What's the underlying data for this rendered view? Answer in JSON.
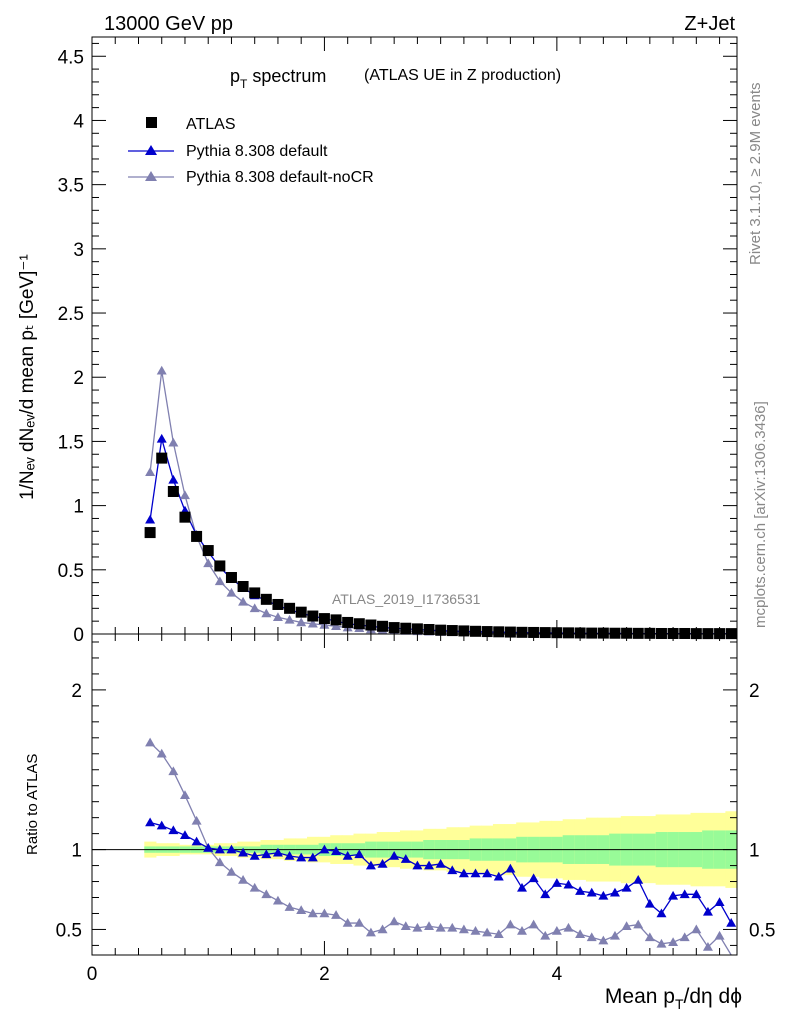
{
  "header": {
    "energy": "13000 GeV pp",
    "process": "Z+Jet",
    "side_rivet": "Rivet 3.1.10, ≥ 2.9M events",
    "side_mcplots": "mcplots.cern.ch [arXiv:1306.3436]",
    "analysis_id": "ATLAS_2019_I1736531"
  },
  "title": {
    "main_p": "p",
    "main_sub": "T",
    "main_rest": " spectrum",
    "extra": "(ATLAS UE in Z production)"
  },
  "axes": {
    "xlabel_a": "Mean p",
    "xlabel_sub": "T",
    "xlabel_b": "/dη dϕ",
    "ylabel_main": "1/Nₑᵥ dNₑᵥ/d mean pₜ [GeV]⁻¹",
    "ylabel_ratio": "Ratio to ATLAS"
  },
  "legend": {
    "items": [
      {
        "label": "ATLAS",
        "color": "#000000",
        "marker": "square"
      },
      {
        "label": "Pythia 8.308 default",
        "color": "#0000cc",
        "marker": "triangle"
      },
      {
        "label": "Pythia 8.308 default-noCR",
        "color": "#8080b0",
        "marker": "triangle"
      }
    ]
  },
  "colors": {
    "data": "#000000",
    "default": "#0000cc",
    "nocr": "#8080b0",
    "band_inner": "#98fb98",
    "band_outer": "#ffff99"
  },
  "chart_data": {
    "type": "line",
    "x": [
      0.5,
      0.6,
      0.7,
      0.8,
      0.9,
      1.0,
      1.1,
      1.2,
      1.3,
      1.4,
      1.5,
      1.6,
      1.7,
      1.8,
      1.9,
      2.0,
      2.1,
      2.2,
      2.3,
      2.4,
      2.5,
      2.6,
      2.7,
      2.8,
      2.9,
      3.0,
      3.1,
      3.2,
      3.3,
      3.4,
      3.5,
      3.6,
      3.7,
      3.8,
      3.9,
      4.0,
      4.1,
      4.2,
      4.3,
      4.4,
      4.5,
      4.6,
      4.7,
      4.8,
      4.9,
      5.0,
      5.1,
      5.2,
      5.3,
      5.4,
      5.5
    ],
    "xlim": [
      0,
      5.55
    ],
    "main_ylim": [
      0,
      4.65
    ],
    "main_yticks": [
      0,
      0.5,
      1,
      1.5,
      2,
      2.5,
      3,
      3.5,
      4,
      4.5
    ],
    "ratio_ylim": [
      0.34,
      2.35
    ],
    "ratio_yticks": [
      0.5,
      1,
      2
    ],
    "xticks": [
      0,
      2,
      4
    ],
    "series": [
      {
        "name": "ATLAS",
        "values": [
          0.79,
          1.37,
          1.11,
          0.91,
          0.76,
          0.65,
          0.53,
          0.44,
          0.37,
          0.32,
          0.27,
          0.23,
          0.2,
          0.17,
          0.14,
          0.12,
          0.11,
          0.09,
          0.08,
          0.07,
          0.06,
          0.05,
          0.045,
          0.04,
          0.035,
          0.03,
          0.027,
          0.024,
          0.021,
          0.019,
          0.017,
          0.015,
          0.013,
          0.012,
          0.011,
          0.01,
          0.009,
          0.008,
          0.007,
          0.007,
          0.006,
          0.006,
          0.005,
          0.005,
          0.004,
          0.004,
          0.004,
          0.003,
          0.003,
          0.003,
          0.003
        ]
      },
      {
        "name": "Pythia 8.308 default",
        "values": [
          0.89,
          1.52,
          1.2,
          0.96,
          0.77,
          0.64,
          0.52,
          0.43,
          0.36,
          0.3,
          0.26,
          0.22,
          0.19,
          0.16,
          0.14,
          0.12,
          0.1,
          0.08,
          0.07,
          0.06,
          0.05,
          0.045,
          0.04,
          0.035,
          0.03,
          0.026,
          0.023,
          0.02,
          0.018,
          0.016,
          0.014,
          0.013,
          0.011,
          0.01,
          0.009,
          0.008,
          0.007,
          0.006,
          0.005,
          0.005,
          0.005,
          0.004,
          0.004,
          0.003,
          0.003,
          0.003,
          0.003,
          0.002,
          0.002,
          0.002,
          0.002
        ]
      },
      {
        "name": "Pythia 8.308 default-noCR",
        "values": [
          1.26,
          2.05,
          1.49,
          1.08,
          0.76,
          0.55,
          0.41,
          0.32,
          0.25,
          0.2,
          0.16,
          0.13,
          0.11,
          0.09,
          0.08,
          0.07,
          0.06,
          0.05,
          0.045,
          0.035,
          0.03,
          0.026,
          0.023,
          0.02,
          0.018,
          0.015,
          0.013,
          0.012,
          0.01,
          0.009,
          0.008,
          0.007,
          0.006,
          0.005,
          0.005,
          0.004,
          0.004,
          0.003,
          0.003,
          0.003,
          0.003,
          0.002,
          0.002,
          0.002,
          0.002,
          0.002,
          0.002,
          0.001,
          0.001,
          0.001,
          0.001
        ]
      }
    ],
    "ratio_series": [
      {
        "name": "Pythia 8.308 default",
        "values": [
          1.17,
          1.15,
          1.12,
          1.09,
          1.05,
          1.01,
          1.0,
          1.0,
          0.98,
          0.96,
          0.97,
          0.98,
          0.96,
          0.95,
          0.95,
          1.0,
          0.99,
          0.96,
          0.97,
          0.9,
          0.91,
          0.96,
          0.94,
          0.9,
          0.9,
          0.91,
          0.87,
          0.85,
          0.85,
          0.85,
          0.83,
          0.88,
          0.76,
          0.82,
          0.72,
          0.79,
          0.78,
          0.74,
          0.73,
          0.71,
          0.73,
          0.76,
          0.81,
          0.66,
          0.6,
          0.71,
          0.72,
          0.72,
          0.61,
          0.67,
          0.54
        ]
      },
      {
        "name": "Pythia 8.308 default-noCR",
        "values": [
          1.67,
          1.6,
          1.49,
          1.34,
          1.18,
          1.01,
          0.92,
          0.86,
          0.81,
          0.76,
          0.72,
          0.68,
          0.64,
          0.62,
          0.6,
          0.6,
          0.59,
          0.54,
          0.54,
          0.48,
          0.5,
          0.55,
          0.52,
          0.51,
          0.52,
          0.51,
          0.51,
          0.5,
          0.49,
          0.48,
          0.47,
          0.53,
          0.49,
          0.53,
          0.46,
          0.49,
          0.51,
          0.47,
          0.45,
          0.43,
          0.46,
          0.52,
          0.53,
          0.45,
          0.41,
          0.42,
          0.45,
          0.5,
          0.39,
          0.46,
          0.32
        ]
      }
    ],
    "band_inner_halfwidth": [
      0.02,
      0.02,
      0.02,
      0.02,
      0.02,
      0.02,
      0.02,
      0.02,
      0.02,
      0.02,
      0.03,
      0.03,
      0.03,
      0.03,
      0.03,
      0.04,
      0.04,
      0.04,
      0.04,
      0.05,
      0.05,
      0.05,
      0.05,
      0.05,
      0.06,
      0.06,
      0.06,
      0.06,
      0.07,
      0.07,
      0.07,
      0.07,
      0.08,
      0.08,
      0.08,
      0.08,
      0.09,
      0.09,
      0.09,
      0.09,
      0.1,
      0.1,
      0.1,
      0.1,
      0.11,
      0.11,
      0.11,
      0.11,
      0.12,
      0.12,
      0.12
    ],
    "band_outer_halfwidth": [
      0.05,
      0.04,
      0.04,
      0.03,
      0.03,
      0.03,
      0.04,
      0.04,
      0.05,
      0.05,
      0.06,
      0.06,
      0.07,
      0.07,
      0.08,
      0.08,
      0.09,
      0.09,
      0.1,
      0.1,
      0.11,
      0.11,
      0.12,
      0.12,
      0.13,
      0.13,
      0.14,
      0.14,
      0.15,
      0.15,
      0.16,
      0.16,
      0.17,
      0.17,
      0.18,
      0.18,
      0.19,
      0.19,
      0.2,
      0.2,
      0.2,
      0.21,
      0.21,
      0.21,
      0.22,
      0.22,
      0.22,
      0.23,
      0.23,
      0.23,
      0.24
    ],
    "grid": false,
    "legend_position": "top-left"
  }
}
